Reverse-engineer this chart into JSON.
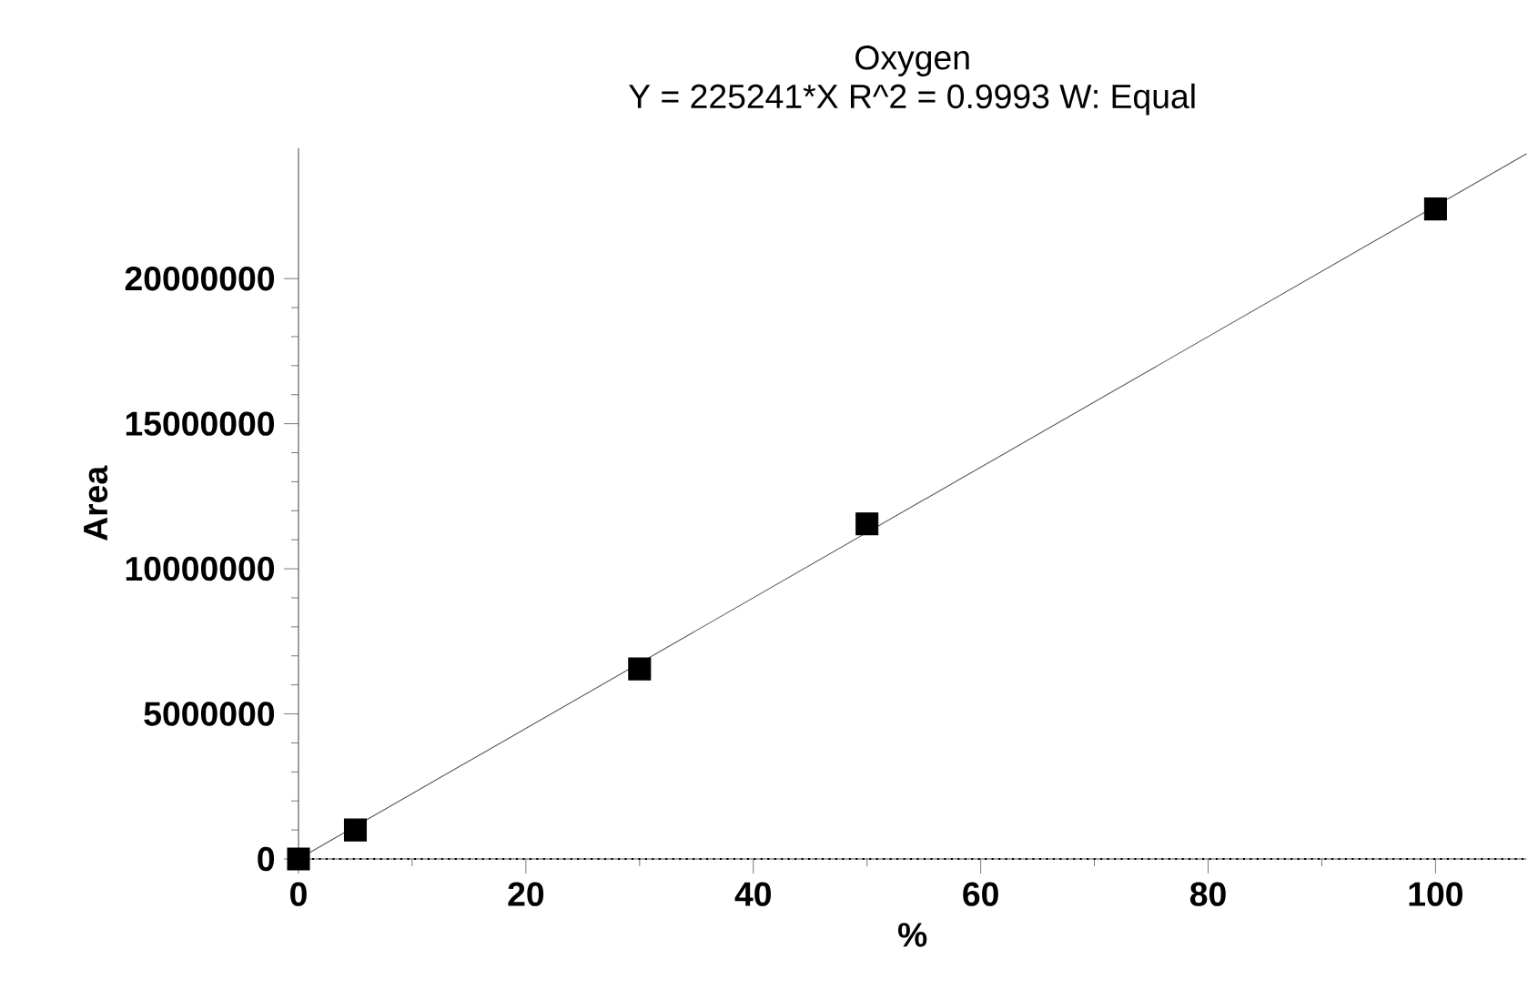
{
  "chart_data": {
    "type": "scatter",
    "title": "Oxygen",
    "subtitle": "Y = 225241*X   R^2 = 0.9993   W: Equal",
    "xlabel": "%",
    "ylabel": "Area",
    "x": [
      0,
      5,
      30,
      50,
      100
    ],
    "series": [
      {
        "color": "#000000",
        "marker": "square",
        "values": [
          0,
          1000000,
          6550000,
          11550000,
          22400000
        ]
      },
      {
        "type": "line",
        "color": "#555555",
        "marker": "none",
        "x": [
          0,
          108
        ],
        "values": [
          0,
          24300000
        ]
      }
    ],
    "xlim": [
      0,
      108
    ],
    "xticks": [
      0,
      20,
      40,
      60,
      80,
      100
    ],
    "ylim": [
      0,
      24500000
    ],
    "yticks": [
      0,
      5000000,
      10000000,
      15000000,
      20000000
    ],
    "ref_lines": [
      {
        "axis": "y",
        "value": 0,
        "line_style": "dotted"
      }
    ],
    "grid": false
  }
}
